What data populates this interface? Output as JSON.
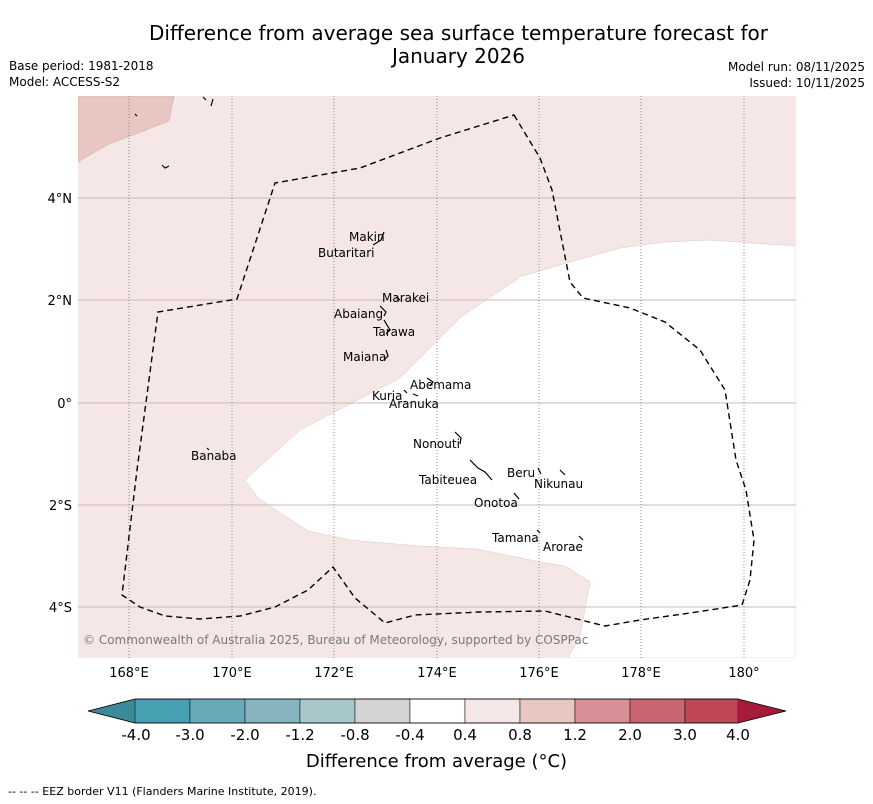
{
  "title_line1": "Difference from average sea surface temperature forecast for",
  "title_line2": "January 2026",
  "base_period": "Base period: 1981-2018",
  "model": "Model: ACCESS-S2",
  "model_run": "Model run: 08/11/2025",
  "issued": "Issued: 10/11/2025",
  "copyright": "© Commonwealth of Australia 2025, Bureau of Meteorology, supported by COSPPac",
  "lon_ticks": [
    "168°E",
    "170°E",
    "172°E",
    "174°E",
    "176°E",
    "178°E",
    "180°"
  ],
  "lat_ticks": [
    "4°N",
    "2°N",
    "0°",
    "2°S",
    "4°S"
  ],
  "islands": [
    {
      "name": "Makin"
    },
    {
      "name": "Butaritari"
    },
    {
      "name": "Marakei"
    },
    {
      "name": "Abaiang"
    },
    {
      "name": "Tarawa"
    },
    {
      "name": "Maiana"
    },
    {
      "name": "Abemama"
    },
    {
      "name": "Kuria"
    },
    {
      "name": "Aranuka"
    },
    {
      "name": "Nonouti"
    },
    {
      "name": "Banaba"
    },
    {
      "name": "Beru"
    },
    {
      "name": "Tabiteuea"
    },
    {
      "name": "Nikunau"
    },
    {
      "name": "Onotoa"
    },
    {
      "name": "Tamana"
    },
    {
      "name": "Arorae"
    }
  ],
  "colorbar": {
    "title": "Difference from average (°C)",
    "tick_labels": [
      "-4.0",
      "-3.0",
      "-2.0",
      "-1.2",
      "-0.8",
      "-0.4",
      "0.4",
      "0.8",
      "1.2",
      "2.0",
      "3.0",
      "4.0"
    ],
    "colors": [
      "#3b8a99",
      "#46a0b1",
      "#67abb9",
      "#86b5c0",
      "#a7c7cb",
      "#d4d4d4",
      "#ffffff",
      "#f5e7e6",
      "#e8c7c2",
      "#d88f96",
      "#c96570",
      "#bf4655",
      "#a51c3a"
    ]
  },
  "footnote": "--  --  -- EEZ border V11 (Flanders Marine Institute, 2019)."
}
